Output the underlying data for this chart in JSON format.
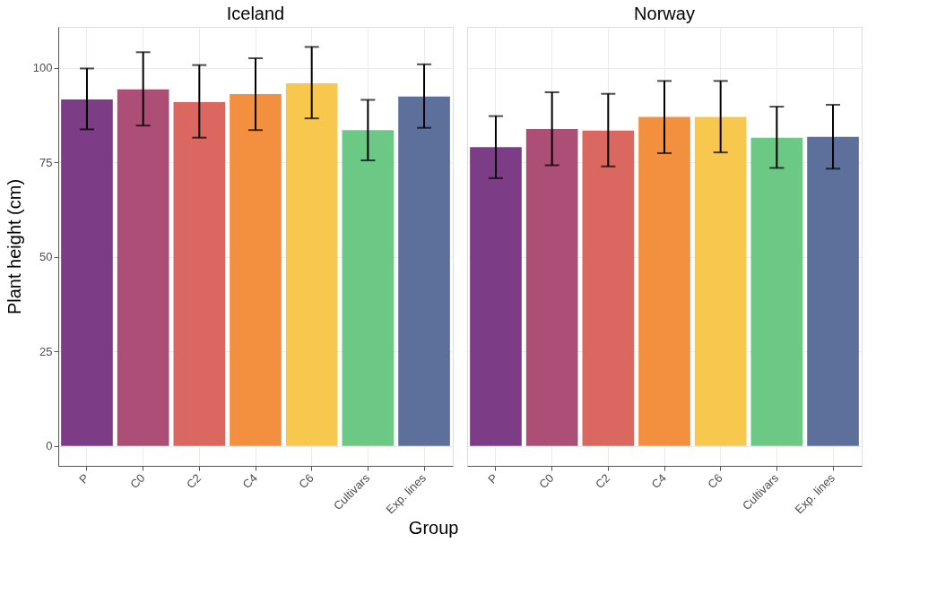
{
  "chart_data": [
    {
      "type": "bar",
      "title": "Iceland",
      "xlabel": "Group",
      "ylabel": "Plant height (cm)",
      "categories": [
        "P",
        "C0",
        "C2",
        "C4",
        "C6",
        "Cultivars",
        "Exp. lines"
      ],
      "values": [
        91.6,
        94.3,
        90.9,
        93.0,
        95.9,
        83.5,
        92.4
      ],
      "errors": [
        [
          83.7,
          99.8
        ],
        [
          84.7,
          104.1
        ],
        [
          81.5,
          100.7
        ],
        [
          83.5,
          102.5
        ],
        [
          86.6,
          105.5
        ],
        [
          75.5,
          91.5
        ],
        [
          84.1,
          100.9
        ]
      ],
      "colors": [
        "#76317f",
        "#a8446f",
        "#d95f59",
        "#f28a35",
        "#f8c445",
        "#63c57e",
        "#546897"
      ],
      "ylim": [
        -5.3,
        110.8
      ],
      "yticks": [
        0,
        25,
        50,
        75,
        100
      ],
      "grid": true
    },
    {
      "type": "bar",
      "title": "Norway",
      "categories": [
        "P",
        "C0",
        "C2",
        "C4",
        "C6",
        "Cultivars",
        "Exp. lines"
      ],
      "values": [
        79.0,
        83.8,
        83.4,
        87.0,
        87.0,
        81.5,
        81.7
      ],
      "errors": [
        [
          70.8,
          87.2
        ],
        [
          74.2,
          93.5
        ],
        [
          73.9,
          93.1
        ],
        [
          77.4,
          96.5
        ],
        [
          77.6,
          96.5
        ],
        [
          73.5,
          89.7
        ],
        [
          73.3,
          90.2
        ]
      ],
      "colors": [
        "#76317f",
        "#a8446f",
        "#d95f59",
        "#f28a35",
        "#f8c445",
        "#63c57e",
        "#546897"
      ],
      "ylim": [
        -5.3,
        110.8
      ],
      "yticks": [
        0,
        25,
        50,
        75,
        100
      ],
      "grid": true,
      "tick_labels": "x"
    }
  ]
}
